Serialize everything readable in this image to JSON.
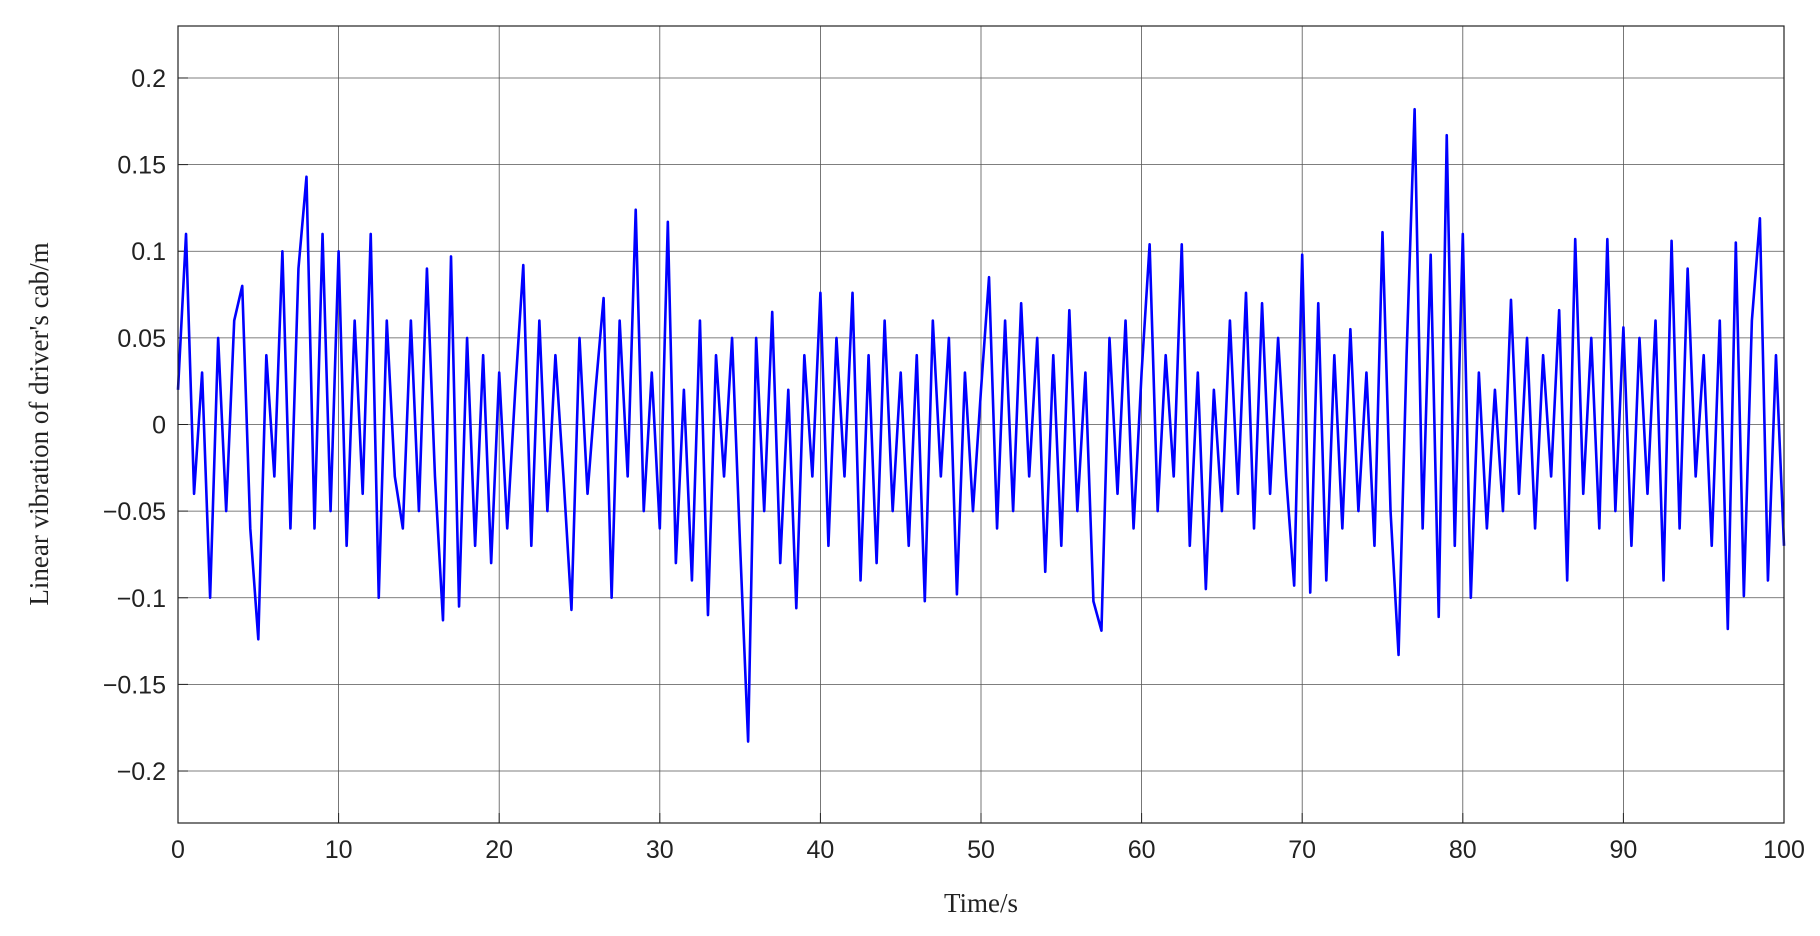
{
  "chart_data": {
    "type": "line",
    "xlabel": "Time/s",
    "ylabel": "Linear vibration of driver's cab/m",
    "xlim": [
      0,
      100
    ],
    "ylim": [
      -0.23,
      0.23
    ],
    "xticks": [
      0,
      10,
      20,
      30,
      40,
      50,
      60,
      70,
      80,
      90,
      100
    ],
    "yticks": [
      {
        "value": -0.2,
        "label": "−0.2"
      },
      {
        "value": -0.15,
        "label": "−0.15"
      },
      {
        "value": -0.1,
        "label": "−0.1"
      },
      {
        "value": -0.05,
        "label": "−0.05"
      },
      0,
      0.05,
      0.1,
      0.15,
      0.2
    ],
    "grid": true,
    "x": [
      0,
      0.5,
      1,
      1.5,
      2,
      2.5,
      3,
      3.5,
      4,
      4.5,
      5,
      5.5,
      6,
      6.5,
      7,
      7.5,
      8,
      8.5,
      9,
      9.5,
      10,
      10.5,
      11,
      11.5,
      12,
      12.5,
      13,
      13.5,
      14,
      14.5,
      15,
      15.5,
      16,
      16.5,
      17,
      17.5,
      18,
      18.5,
      19,
      19.5,
      20,
      20.5,
      21,
      21.5,
      22,
      22.5,
      23,
      23.5,
      24,
      24.5,
      25,
      25.5,
      26,
      26.5,
      27,
      27.5,
      28,
      28.5,
      29,
      29.5,
      30,
      30.5,
      31,
      31.5,
      32,
      32.5,
      33,
      33.5,
      34,
      34.5,
      35,
      35.5,
      36,
      36.5,
      37,
      37.5,
      38,
      38.5,
      39,
      39.5,
      40,
      40.5,
      41,
      41.5,
      42,
      42.5,
      43,
      43.5,
      44,
      44.5,
      45,
      45.5,
      46,
      46.5,
      47,
      47.5,
      48,
      48.5,
      49,
      49.5,
      50,
      50.5,
      51,
      51.5,
      52,
      52.5,
      53,
      53.5,
      54,
      54.5,
      55,
      55.5,
      56,
      56.5,
      57,
      57.5,
      58,
      58.5,
      59,
      59.5,
      60,
      60.5,
      61,
      61.5,
      62,
      62.5,
      63,
      63.5,
      64,
      64.5,
      65,
      65.5,
      66,
      66.5,
      67,
      67.5,
      68,
      68.5,
      69,
      69.5,
      70,
      70.5,
      71,
      71.5,
      72,
      72.5,
      73,
      73.5,
      74,
      74.5,
      75,
      75.5,
      76,
      76.5,
      77,
      77.5,
      78,
      78.5,
      79,
      79.5,
      80,
      80.5,
      81,
      81.5,
      82,
      82.5,
      83,
      83.5,
      84,
      84.5,
      85,
      85.5,
      86,
      86.5,
      87,
      87.5,
      88,
      88.5,
      89,
      89.5,
      90,
      90.5,
      91,
      91.5,
      92,
      92.5,
      93,
      93.5,
      94,
      94.5,
      95,
      95.5,
      96,
      96.5,
      97,
      97.5,
      98,
      98.5,
      99,
      99.5,
      100
    ],
    "series": [
      {
        "color": "#0000ff",
        "values": [
          0.02,
          0.11,
          -0.04,
          0.03,
          -0.1,
          0.05,
          -0.05,
          0.06,
          0.08,
          -0.06,
          -0.124,
          0.04,
          -0.03,
          0.1,
          -0.06,
          0.09,
          0.143,
          -0.06,
          0.11,
          -0.05,
          0.1,
          -0.07,
          0.06,
          -0.04,
          0.11,
          -0.1,
          0.06,
          -0.03,
          -0.06,
          0.06,
          -0.05,
          0.09,
          -0.03,
          -0.113,
          0.097,
          -0.105,
          0.05,
          -0.07,
          0.04,
          -0.08,
          0.03,
          -0.06,
          0.02,
          0.092,
          -0.07,
          0.06,
          -0.05,
          0.04,
          -0.03,
          -0.107,
          0.05,
          -0.04,
          0.02,
          0.073,
          -0.1,
          0.06,
          -0.03,
          0.124,
          -0.05,
          0.03,
          -0.06,
          0.117,
          -0.08,
          0.02,
          -0.09,
          0.06,
          -0.11,
          0.04,
          -0.03,
          0.05,
          -0.07,
          -0.183,
          0.05,
          -0.05,
          0.065,
          -0.08,
          0.02,
          -0.106,
          0.04,
          -0.03,
          0.076,
          -0.07,
          0.05,
          -0.03,
          0.076,
          -0.09,
          0.04,
          -0.08,
          0.06,
          -0.05,
          0.03,
          -0.07,
          0.04,
          -0.102,
          0.06,
          -0.03,
          0.05,
          -0.098,
          0.03,
          -0.05,
          0.02,
          0.085,
          -0.06,
          0.06,
          -0.05,
          0.07,
          -0.03,
          0.05,
          -0.085,
          0.04,
          -0.07,
          0.066,
          -0.05,
          0.03,
          -0.102,
          -0.119,
          0.05,
          -0.04,
          0.06,
          -0.06,
          0.03,
          0.104,
          -0.05,
          0.04,
          -0.03,
          0.104,
          -0.07,
          0.03,
          -0.095,
          0.02,
          -0.05,
          0.06,
          -0.04,
          0.076,
          -0.06,
          0.07,
          -0.04,
          0.05,
          -0.03,
          -0.093,
          0.098,
          -0.097,
          0.07,
          -0.09,
          0.04,
          -0.06,
          0.055,
          -0.05,
          0.03,
          -0.07,
          0.111,
          -0.05,
          -0.133,
          0.04,
          0.182,
          -0.06,
          0.098,
          -0.111,
          0.167,
          -0.07,
          0.11,
          -0.1,
          0.03,
          -0.06,
          0.02,
          -0.05,
          0.072,
          -0.04,
          0.05,
          -0.06,
          0.04,
          -0.03,
          0.066,
          -0.09,
          0.107,
          -0.04,
          0.05,
          -0.06,
          0.107,
          -0.05,
          0.056,
          -0.07,
          0.05,
          -0.04,
          0.06,
          -0.09,
          0.106,
          -0.06,
          0.09,
          -0.03,
          0.04,
          -0.07,
          0.06,
          -0.118,
          0.105,
          -0.099,
          0.06,
          0.119,
          -0.09,
          0.04,
          -0.07
        ]
      }
    ]
  }
}
